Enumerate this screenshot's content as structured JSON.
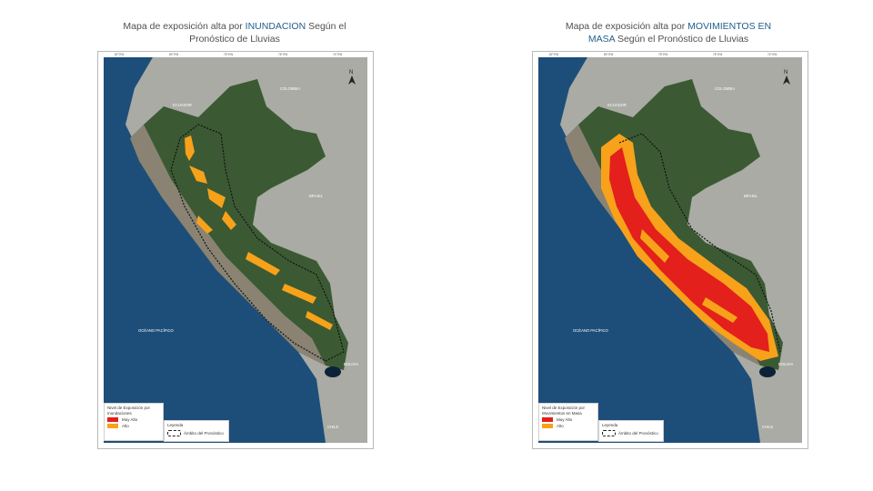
{
  "slide": {
    "maps": [
      {
        "id": "inundacion",
        "title_before": "Mapa de exposición alta por ",
        "title_highlight": "INUNDACION",
        "title_after": " Según el",
        "title_line2": "Pronóstico de Lluvias",
        "legend": {
          "title_line1": "Nivel de Exposición por",
          "title_line2": "Inundaciones",
          "items": [
            {
              "label": "Muy Alto",
              "color": "#e3201b"
            },
            {
              "label": "Alto",
              "color": "#f7a21a"
            }
          ]
        },
        "legend2": {
          "title": "Leyenda",
          "item": "Ámbito del Pronóstico"
        },
        "place_labels": [
          "COLOMBIA",
          "ECUADOR",
          "BRASIL",
          "OCÉANO PACÍFICO",
          "BOLIVIA",
          "CHILE"
        ]
      },
      {
        "id": "movimientos",
        "title_before": "Mapa de exposición alta por ",
        "title_highlight": "MOVIMIENTOS EN",
        "title_after": "",
        "title_line2_highlight": "MASA",
        "title_line2": " Según el Pronóstico de Lluvias",
        "legend": {
          "title_line1": "Nivel de Exposición por",
          "title_line2": "Movimientos en Masa",
          "items": [
            {
              "label": "Muy Alto",
              "color": "#e3201b"
            },
            {
              "label": "Alto",
              "color": "#f7a21a"
            }
          ]
        },
        "legend2": {
          "title": "Leyenda",
          "item": "Ámbito del Pronóstico"
        },
        "place_labels": [
          "COLOMBIA",
          "ECUADOR",
          "BRASIL",
          "OCÉANO PACÍFICO",
          "BOLIVIA",
          "CHILE"
        ]
      }
    ],
    "colors": {
      "ocean": "#1d4e7a",
      "land_peru": "#3b5a33",
      "neighbors": "#a9aba4",
      "andes": "#8a8373",
      "muy_alto": "#e3201b",
      "alto": "#f7a21a"
    },
    "north_label": "N"
  }
}
